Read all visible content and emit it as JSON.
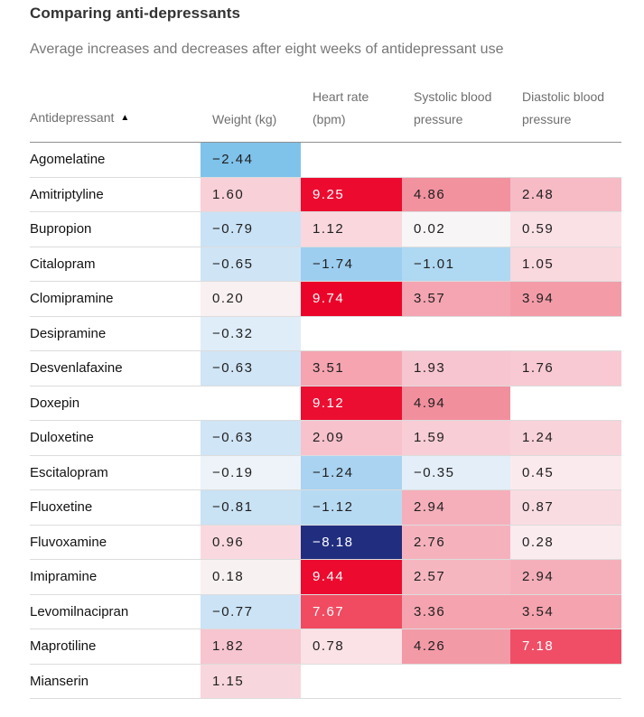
{
  "ui": {
    "sort_icon": "▲",
    "header_rule_color": "#8f8f8f",
    "row_divider_color": "#dcdcdc",
    "default_cell_text_color": "#1f1f1f",
    "inverse_cell_text_color": "#ffffff"
  },
  "chart_data": {
    "type": "heatmap",
    "title": "Comparing anti-depressants",
    "subtitle": "Average increases and decreases after eight weeks of antidepressant use",
    "columns": [
      "Antidepressant",
      "Weight (kg)",
      "Heart rate (bpm)",
      "Systolic blood pressure",
      "Diastolic blood pressure"
    ],
    "sort": {
      "column": "Antidepressant",
      "direction": "ascending"
    },
    "color_scale": {
      "negative": "#212e7f",
      "zero": "#ffffff",
      "positive": "#ec0a2e"
    },
    "value_domain": [
      -8.18,
      9.74
    ],
    "rows": [
      {
        "name": "Agomelatine",
        "values": [
          -2.44,
          null,
          null,
          null
        ],
        "cells": [
          {
            "text": "−2.44",
            "bg": "#7fc2ea"
          },
          null,
          null,
          null
        ]
      },
      {
        "name": "Amitriptyline",
        "values": [
          1.6,
          9.25,
          4.86,
          2.48
        ],
        "cells": [
          {
            "text": "1.60",
            "bg": "#f8d0d8"
          },
          {
            "text": "9.25",
            "bg": "#ec0b2f",
            "fg": "#ffffff"
          },
          {
            "text": "4.86",
            "bg": "#f2929f"
          },
          {
            "text": "2.48",
            "bg": "#f7bbc5"
          }
        ]
      },
      {
        "name": "Bupropion",
        "values": [
          -0.79,
          1.12,
          0.02,
          0.59
        ],
        "cells": [
          {
            "text": "−0.79",
            "bg": "#cae2f5"
          },
          {
            "text": "1.12",
            "bg": "#f9d7dd"
          },
          {
            "text": "0.02",
            "bg": "#f7f5f6"
          },
          {
            "text": "0.59",
            "bg": "#fae1e6"
          }
        ]
      },
      {
        "name": "Citalopram",
        "values": [
          -0.65,
          -1.74,
          -1.01,
          1.05
        ],
        "cells": [
          {
            "text": "−0.65",
            "bg": "#cfe5f6"
          },
          {
            "text": "−1.74",
            "bg": "#9dceef"
          },
          {
            "text": "−1.01",
            "bg": "#afd8f2"
          },
          {
            "text": "1.05",
            "bg": "#f9d8de"
          }
        ]
      },
      {
        "name": "Clomipramine",
        "values": [
          0.2,
          9.74,
          3.57,
          3.94
        ],
        "cells": [
          {
            "text": "0.20",
            "bg": "#f8f0f1"
          },
          {
            "text": "9.74",
            "bg": "#eb0429",
            "fg": "#ffffff"
          },
          {
            "text": "3.57",
            "bg": "#f4a5b1"
          },
          {
            "text": "3.94",
            "bg": "#f39ca8"
          }
        ]
      },
      {
        "name": "Desipramine",
        "values": [
          -0.32,
          null,
          null,
          null
        ],
        "cells": [
          {
            "text": "−0.32",
            "bg": "#dfedf8"
          },
          null,
          null,
          null
        ]
      },
      {
        "name": "Desvenlafaxine",
        "values": [
          -0.63,
          3.51,
          1.93,
          1.76
        ],
        "cells": [
          {
            "text": "−0.63",
            "bg": "#d0e5f6"
          },
          {
            "text": "3.51",
            "bg": "#f5a4b0"
          },
          {
            "text": "1.93",
            "bg": "#f7c5cf"
          },
          {
            "text": "1.76",
            "bg": "#f8c9d2"
          }
        ]
      },
      {
        "name": "Doxepin",
        "values": [
          null,
          9.12,
          4.94,
          null
        ],
        "cells": [
          null,
          {
            "text": "9.12",
            "bg": "#ec0e31",
            "fg": "#ffffff"
          },
          {
            "text": "4.94",
            "bg": "#f28f9d"
          },
          null
        ]
      },
      {
        "name": "Duloxetine",
        "values": [
          -0.63,
          2.09,
          1.59,
          1.24
        ],
        "cells": [
          {
            "text": "−0.63",
            "bg": "#d0e5f6"
          },
          {
            "text": "2.09",
            "bg": "#f7c2cc"
          },
          {
            "text": "1.59",
            "bg": "#f8cdd5"
          },
          {
            "text": "1.24",
            "bg": "#f9d3da"
          }
        ]
      },
      {
        "name": "Escitalopram",
        "values": [
          -0.19,
          -1.24,
          -0.35,
          0.45
        ],
        "cells": [
          {
            "text": "−0.19",
            "bg": "#edf3f8"
          },
          {
            "text": "−1.24",
            "bg": "#a9d3f0"
          },
          {
            "text": "−0.35",
            "bg": "#e3eef8"
          },
          {
            "text": "0.45",
            "bg": "#fbeaed"
          }
        ]
      },
      {
        "name": "Fluoxetine",
        "values": [
          -0.81,
          -1.12,
          2.94,
          0.87
        ],
        "cells": [
          {
            "text": "−0.81",
            "bg": "#c9e2f4"
          },
          {
            "text": "−1.12",
            "bg": "#b7daf3"
          },
          {
            "text": "2.94",
            "bg": "#f5afba"
          },
          {
            "text": "0.87",
            "bg": "#f9dce2"
          }
        ]
      },
      {
        "name": "Fluvoxamine",
        "values": [
          0.96,
          -8.18,
          2.76,
          0.28
        ],
        "cells": [
          {
            "text": "0.96",
            "bg": "#f9d9df"
          },
          {
            "text": "−8.18",
            "bg": "#212e7f",
            "fg": "#ffffff"
          },
          {
            "text": "2.76",
            "bg": "#f5b2bd"
          },
          {
            "text": "0.28",
            "bg": "#faebee"
          }
        ]
      },
      {
        "name": "Imipramine",
        "values": [
          0.18,
          9.44,
          2.57,
          2.94
        ],
        "cells": [
          {
            "text": "0.18",
            "bg": "#f8f1f2"
          },
          {
            "text": "9.44",
            "bg": "#ec0a2e",
            "fg": "#ffffff"
          },
          {
            "text": "2.57",
            "bg": "#f6b6c0"
          },
          {
            "text": "2.94",
            "bg": "#f5afba"
          }
        ]
      },
      {
        "name": "Levomilnacipran",
        "values": [
          -0.77,
          7.67,
          3.36,
          3.54
        ],
        "cells": [
          {
            "text": "−0.77",
            "bg": "#cbe3f5"
          },
          {
            "text": "7.67",
            "bg": "#f04b61",
            "fg": "#ffffff"
          },
          {
            "text": "3.36",
            "bg": "#f5a3af"
          },
          {
            "text": "3.54",
            "bg": "#f5a3af"
          }
        ]
      },
      {
        "name": "Maprotiline",
        "values": [
          1.82,
          0.78,
          4.26,
          7.18
        ],
        "cells": [
          {
            "text": "1.82",
            "bg": "#f6c5cf"
          },
          {
            "text": "0.78",
            "bg": "#fae2e6"
          },
          {
            "text": "4.26",
            "bg": "#f39aa7"
          },
          {
            "text": "7.18",
            "bg": "#f04e66",
            "fg": "#ffffff"
          }
        ]
      },
      {
        "name": "Mianserin",
        "values": [
          1.15,
          null,
          null,
          null
        ],
        "cells": [
          {
            "text": "1.15",
            "bg": "#f8d6dd"
          },
          null,
          null,
          null
        ]
      }
    ]
  }
}
